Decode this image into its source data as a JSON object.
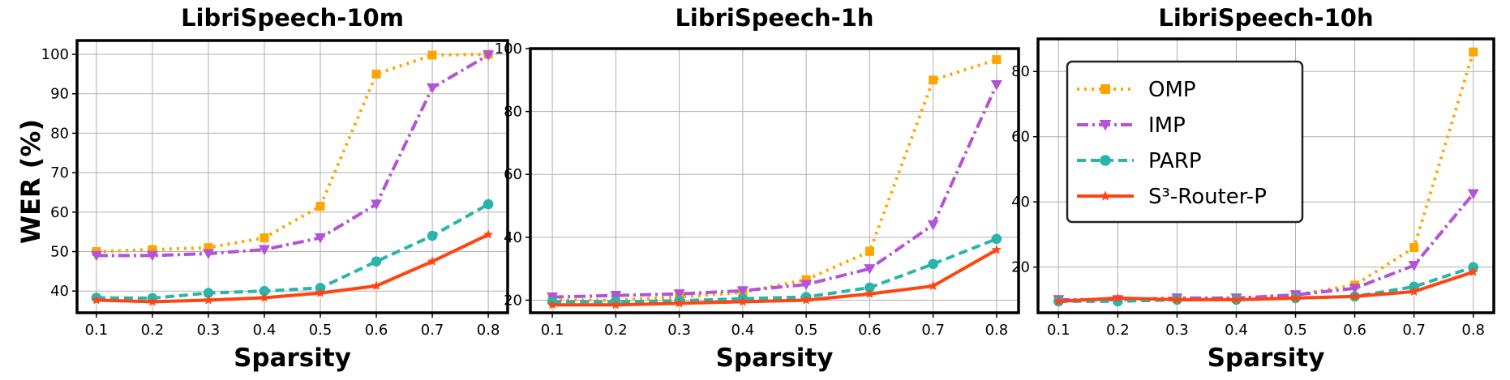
{
  "figure": {
    "ylabel": "WER (%)"
  },
  "legend": {
    "entries": [
      {
        "key": "omp",
        "label": "OMP"
      },
      {
        "key": "imp",
        "label": "IMP"
      },
      {
        "key": "parp",
        "label": "PARP"
      },
      {
        "key": "s3",
        "label": "S³-Router-P"
      }
    ]
  },
  "series_style": {
    "omp": {
      "color": "#FFA500",
      "dash": "3 6",
      "marker": "square"
    },
    "imp": {
      "color": "#B452D8",
      "dash": "14 5 3 5",
      "marker": "triangle-down"
    },
    "parp": {
      "color": "#2AB5AB",
      "dash": "11 6",
      "marker": "circle"
    },
    "s3": {
      "color": "#FF4412",
      "dash": "",
      "marker": "star"
    }
  },
  "chart_data": [
    {
      "type": "line",
      "title": "LibriSpeech-10m",
      "xlabel": "Sparsity",
      "ylabel": "WER (%)",
      "x": [
        0.1,
        0.2,
        0.3,
        0.4,
        0.5,
        0.6,
        0.7,
        0.8
      ],
      "x_ticks": [
        "0.1",
        "0.2",
        "0.3",
        "0.4",
        "0.5",
        "0.6",
        "0.7",
        "0.8"
      ],
      "y_ticks": [
        40,
        50,
        60,
        70,
        80,
        90,
        100
      ],
      "ylim": [
        34.5,
        103.5
      ],
      "grid": true,
      "series": [
        {
          "name": "OMP",
          "key": "omp",
          "values": [
            50.0,
            50.5,
            51.0,
            53.5,
            61.5,
            95.0,
            99.8,
            100.0
          ]
        },
        {
          "name": "IMP",
          "key": "imp",
          "values": [
            49.0,
            49.0,
            49.5,
            50.5,
            53.5,
            62.0,
            91.5,
            99.8
          ]
        },
        {
          "name": "PARP",
          "key": "parp",
          "values": [
            38.3,
            38.2,
            39.5,
            40.0,
            40.8,
            47.5,
            54.0,
            62.0
          ]
        },
        {
          "name": "S³-Router-P",
          "key": "s3",
          "values": [
            37.7,
            37.3,
            37.7,
            38.3,
            39.5,
            41.3,
            47.5,
            54.3
          ]
        }
      ]
    },
    {
      "type": "line",
      "title": "LibriSpeech-1h",
      "xlabel": "Sparsity",
      "ylabel": "",
      "x": [
        0.1,
        0.2,
        0.3,
        0.4,
        0.5,
        0.6,
        0.7,
        0.8
      ],
      "x_ticks": [
        "0.1",
        "0.2",
        "0.3",
        "0.4",
        "0.5",
        "0.6",
        "0.7",
        "0.8"
      ],
      "y_ticks": [
        20,
        40,
        60,
        80,
        100
      ],
      "ylim": [
        16,
        100
      ],
      "grid": true,
      "series": [
        {
          "name": "OMP",
          "key": "omp",
          "values": [
            20.0,
            20.0,
            21.0,
            22.5,
            26.5,
            35.5,
            90.0,
            96.5
          ]
        },
        {
          "name": "IMP",
          "key": "imp",
          "values": [
            21.0,
            21.5,
            22.0,
            23.0,
            25.0,
            30.0,
            44.0,
            88.5
          ]
        },
        {
          "name": "PARP",
          "key": "parp",
          "values": [
            19.5,
            19.5,
            19.8,
            20.5,
            21.0,
            24.0,
            31.5,
            39.5
          ]
        },
        {
          "name": "S³-Router-P",
          "key": "s3",
          "values": [
            18.5,
            18.5,
            19.0,
            19.5,
            20.0,
            22.0,
            24.5,
            36.0
          ]
        }
      ]
    },
    {
      "type": "line",
      "title": "LibriSpeech-10h",
      "xlabel": "Sparsity",
      "ylabel": "",
      "x": [
        0.1,
        0.2,
        0.3,
        0.4,
        0.5,
        0.6,
        0.7,
        0.8
      ],
      "x_ticks": [
        "0.1",
        "0.2",
        "0.3",
        "0.4",
        "0.5",
        "0.6",
        "0.7",
        "0.8"
      ],
      "y_ticks": [
        20,
        40,
        60,
        80
      ],
      "ylim": [
        6,
        90
      ],
      "grid": true,
      "legend_position": "upper-left",
      "series": [
        {
          "name": "OMP",
          "key": "omp",
          "values": [
            10.0,
            10.0,
            10.5,
            10.5,
            11.5,
            14.5,
            26.0,
            86.0
          ]
        },
        {
          "name": "IMP",
          "key": "imp",
          "values": [
            10.0,
            10.0,
            10.5,
            10.5,
            11.5,
            13.5,
            20.5,
            42.5
          ]
        },
        {
          "name": "PARP",
          "key": "parp",
          "values": [
            9.5,
            9.5,
            10.0,
            10.0,
            10.5,
            11.0,
            14.0,
            20.0
          ]
        },
        {
          "name": "S³-Router-P",
          "key": "s3",
          "values": [
            9.5,
            10.5,
            10.0,
            10.0,
            10.5,
            11.0,
            12.5,
            18.5
          ]
        }
      ]
    }
  ]
}
